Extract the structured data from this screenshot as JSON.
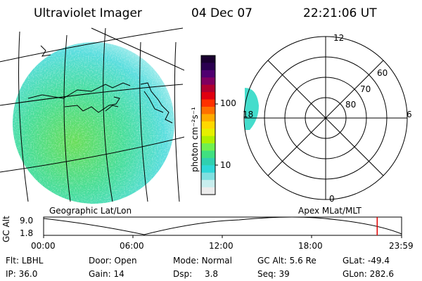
{
  "header": {
    "instrument": "Ultraviolet Imager",
    "date": "04 Dec 07",
    "time": "22:21:06 UT"
  },
  "colorbar": {
    "unit_label": "photon cm⁻²s⁻¹",
    "ticks": [
      "100",
      "10"
    ],
    "colors": [
      "#1a0030",
      "#2a0050",
      "#500070",
      "#800060",
      "#b00030",
      "#e00010",
      "#ff3000",
      "#ff7000",
      "#ffaa00",
      "#ffd800",
      "#e6f000",
      "#b0f000",
      "#70f050",
      "#40e080",
      "#30d0b0",
      "#30d8d8",
      "#80e0e0",
      "#c8eeee",
      "#ececec"
    ]
  },
  "geo_panel": {
    "label": "Geographic Lat/Lon"
  },
  "polar_panel": {
    "label": "Apex MLat/MLT",
    "mlt_labels": {
      "top": "12",
      "left": "18",
      "right": "6",
      "bottom": "0"
    },
    "lat_labels": [
      "60",
      "70",
      "80"
    ]
  },
  "timeline": {
    "ylabel": "GC Alt",
    "yticks": [
      "9.0",
      "1.8"
    ],
    "xticks": [
      "00:00",
      "06:00",
      "12:00",
      "18:00",
      "23:59"
    ],
    "marker_color": "#e00000",
    "marker_time": "22:21"
  },
  "status": {
    "row1": {
      "flt_label": "Flt:",
      "flt_value": "LBHL",
      "door_label": "Door:",
      "door_value": "Open",
      "mode_label": "Mode:",
      "mode_value": "Normal",
      "gcalt_label": "GC Alt:",
      "gcalt_value": "5.6 Re",
      "glat_label": "GLat:",
      "glat_value": "-49.4"
    },
    "row2": {
      "ip_label": "IP:",
      "ip_value": "36.0",
      "gain_label": "Gain:",
      "gain_value": "14",
      "dsp_label": "Dsp:",
      "dsp_value": "3.8",
      "seq_label": "Seq:",
      "seq_value": "39",
      "glon_label": "GLon:",
      "glon_value": "282.6"
    }
  }
}
